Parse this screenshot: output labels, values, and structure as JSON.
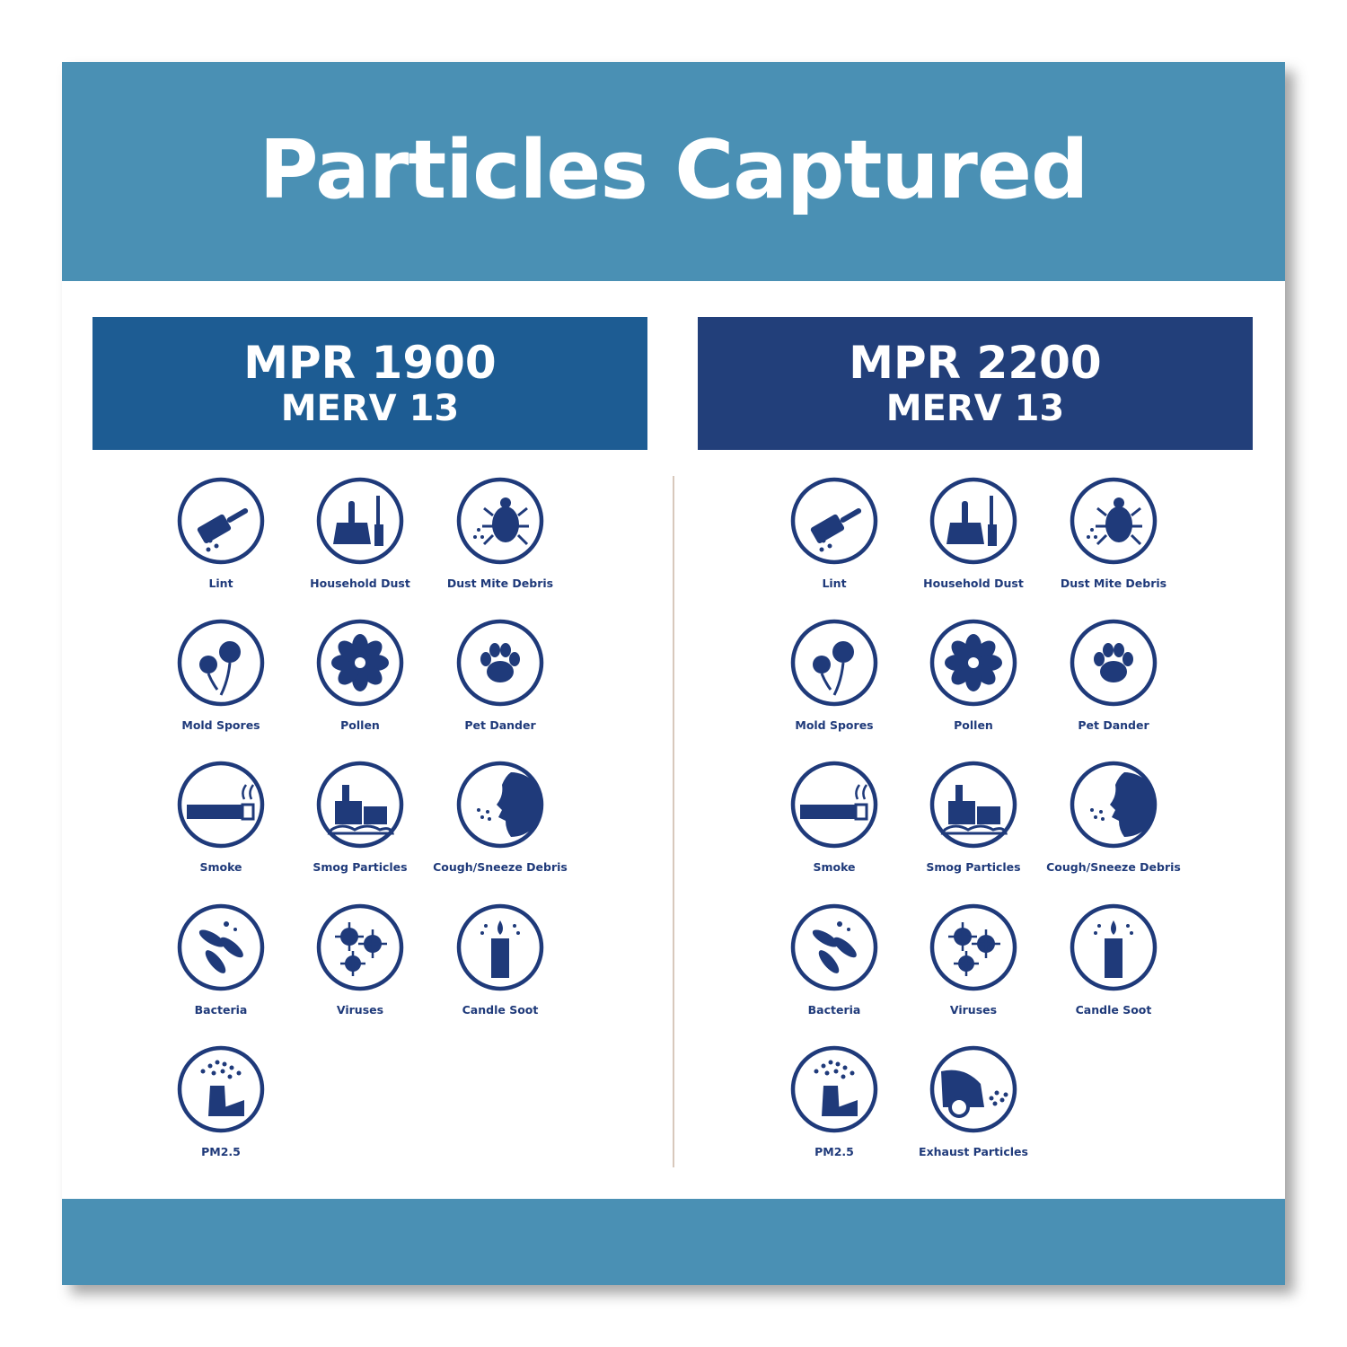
{
  "title": "Particles Captured",
  "colors": {
    "band": "#4a90b4",
    "mpr1900": "#1d5c93",
    "mpr2200": "#223f7a",
    "icon": "#1f3a7a"
  },
  "columns": [
    {
      "mpr": "MPR 1900",
      "merv": "MERV 13",
      "items": [
        {
          "label": "Lint",
          "icon": "lint-roller-icon"
        },
        {
          "label": "Household Dust",
          "icon": "dustpan-icon"
        },
        {
          "label": "Dust Mite Debris",
          "icon": "dust-mite-icon"
        },
        {
          "label": "Mold Spores",
          "icon": "mold-flower-icon"
        },
        {
          "label": "Pollen",
          "icon": "pollen-flower-icon"
        },
        {
          "label": "Pet Dander",
          "icon": "paw-print-icon"
        },
        {
          "label": "Smoke",
          "icon": "cigarette-icon"
        },
        {
          "label": "Smog Particles",
          "icon": "smog-factory-icon"
        },
        {
          "label": "Cough/Sneeze Debris",
          "icon": "sneeze-face-icon"
        },
        {
          "label": "Bacteria",
          "icon": "bacteria-icon"
        },
        {
          "label": "Viruses",
          "icon": "virus-icon"
        },
        {
          "label": "Candle Soot",
          "icon": "candle-icon"
        },
        {
          "label": "PM2.5",
          "icon": "smokestack-icon"
        }
      ]
    },
    {
      "mpr": "MPR 2200",
      "merv": "MERV 13",
      "items": [
        {
          "label": "Lint",
          "icon": "lint-roller-icon"
        },
        {
          "label": "Household Dust",
          "icon": "dustpan-icon"
        },
        {
          "label": "Dust Mite Debris",
          "icon": "dust-mite-icon"
        },
        {
          "label": "Mold Spores",
          "icon": "mold-flower-icon"
        },
        {
          "label": "Pollen",
          "icon": "pollen-flower-icon"
        },
        {
          "label": "Pet Dander",
          "icon": "paw-print-icon"
        },
        {
          "label": "Smoke",
          "icon": "cigarette-icon"
        },
        {
          "label": "Smog Particles",
          "icon": "smog-factory-icon"
        },
        {
          "label": "Cough/Sneeze Debris",
          "icon": "sneeze-face-icon"
        },
        {
          "label": "Bacteria",
          "icon": "bacteria-icon"
        },
        {
          "label": "Viruses",
          "icon": "virus-icon"
        },
        {
          "label": "Candle Soot",
          "icon": "candle-icon"
        },
        {
          "label": "PM2.5",
          "icon": "smokestack-icon"
        },
        {
          "label": "Exhaust Particles",
          "icon": "car-exhaust-icon"
        }
      ]
    }
  ]
}
